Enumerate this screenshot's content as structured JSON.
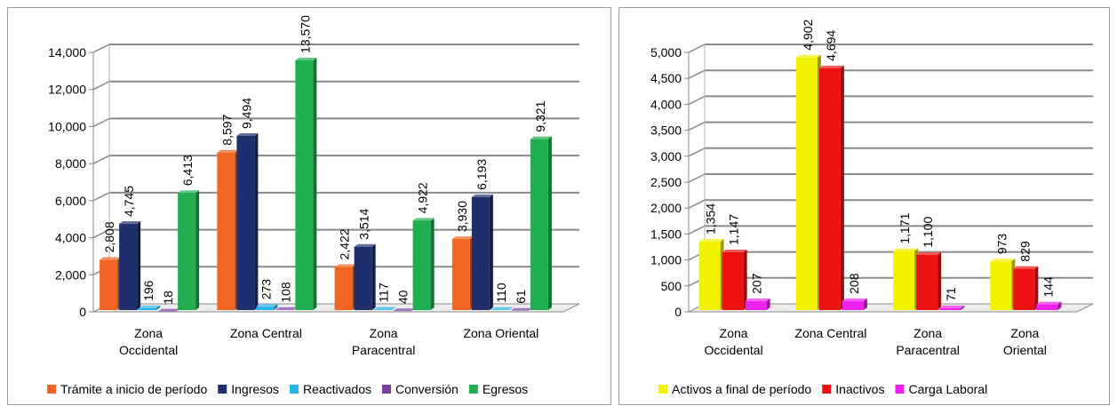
{
  "chart_data": [
    {
      "type": "bar",
      "style": "3d-clustered",
      "categories": [
        [
          "Zona",
          "Occidental"
        ],
        [
          "Zona Central"
        ],
        [
          "Zona",
          "Paracentral"
        ],
        [
          "Zona Oriental"
        ]
      ],
      "ylim": [
        0,
        14000
      ],
      "yticks": [
        "0",
        "2,000",
        "4,000",
        "6,000",
        "8,000",
        "10,000",
        "12,000",
        "14,000"
      ],
      "ytick_values": [
        0,
        2000,
        4000,
        6000,
        8000,
        10000,
        12000,
        14000
      ],
      "grid": true,
      "legend_position": "bottom",
      "series": [
        {
          "name": "Trámite a inicio de período",
          "color": "#f26522",
          "values": [
            2808,
            8597,
            2422,
            3930
          ],
          "labels": [
            "2,808",
            "8,597",
            "2,422",
            "3,930"
          ]
        },
        {
          "name": "Ingresos",
          "color": "#1f2f6e",
          "values": [
            4745,
            9494,
            3514,
            6193
          ],
          "labels": [
            "4,745",
            "9,494",
            "3,514",
            "6,193"
          ]
        },
        {
          "name": "Reactivados",
          "color": "#23b5ea",
          "values": [
            196,
            273,
            117,
            110
          ],
          "labels": [
            "196",
            "273",
            "117",
            "110"
          ]
        },
        {
          "name": "Conversión",
          "color": "#7b3fa0",
          "values": [
            18,
            108,
            40,
            61
          ],
          "labels": [
            "18",
            "108",
            "40",
            "61"
          ]
        },
        {
          "name": "Egresos",
          "color": "#1fae50",
          "values": [
            6413,
            13570,
            4922,
            9321
          ],
          "labels": [
            "6,413",
            "13,570",
            "4,922",
            "9,321"
          ]
        }
      ]
    },
    {
      "type": "bar",
      "style": "3d-clustered",
      "categories": [
        [
          "Zona",
          "Occidental"
        ],
        [
          "Zona Central"
        ],
        [
          "Zona",
          "Paracentral"
        ],
        [
          "Zona",
          "Oriental"
        ]
      ],
      "ylim": [
        0,
        5000
      ],
      "yticks": [
        "0",
        "500",
        "1,000",
        "1,500",
        "2,000",
        "2,500",
        "3,000",
        "3,500",
        "4,000",
        "4,500",
        "5,000"
      ],
      "ytick_values": [
        0,
        500,
        1000,
        1500,
        2000,
        2500,
        3000,
        3500,
        4000,
        4500,
        5000
      ],
      "grid": true,
      "legend_position": "bottom",
      "series": [
        {
          "name": "Activos a final de período",
          "color": "#f2f200",
          "values": [
            1354,
            4902,
            1171,
            973
          ],
          "labels": [
            "1,354",
            "4,902",
            "1,171",
            "973"
          ]
        },
        {
          "name": "Inactivos",
          "color": "#ee1111",
          "values": [
            1147,
            4694,
            1100,
            829
          ],
          "labels": [
            "1,147",
            "4,694",
            "1,100",
            "829"
          ]
        },
        {
          "name": "Carga Laboral",
          "color": "#ee22ee",
          "values": [
            207,
            208,
            71,
            144
          ],
          "labels": [
            "207",
            "208",
            "71",
            "144"
          ]
        }
      ]
    }
  ]
}
